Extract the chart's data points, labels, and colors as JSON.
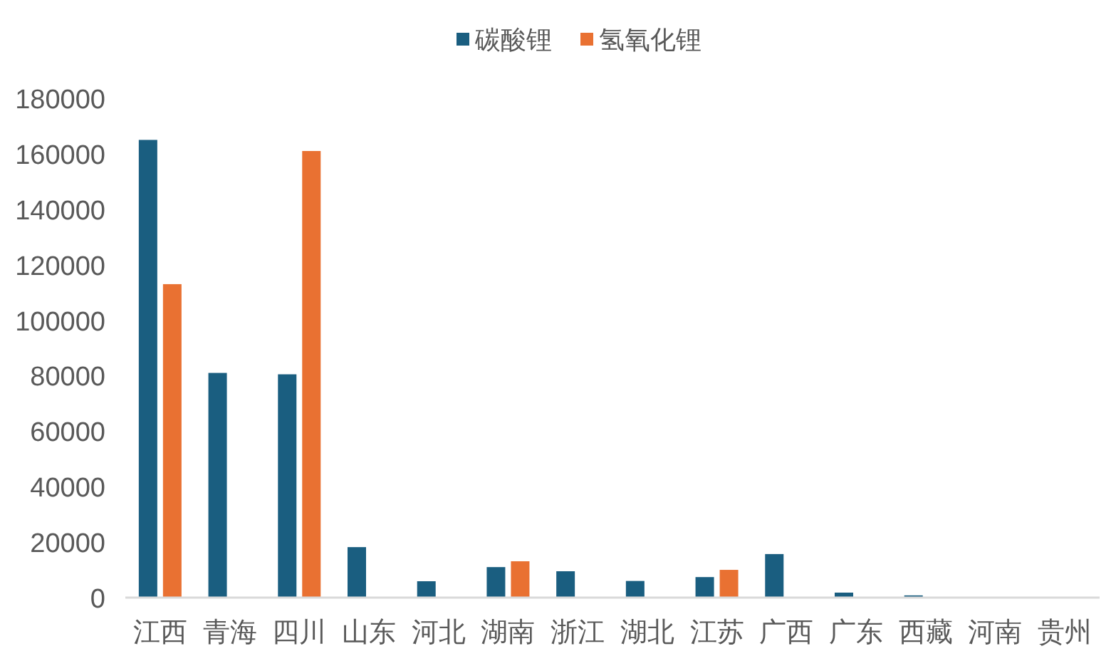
{
  "chart_data": {
    "type": "bar",
    "categories": [
      "江西",
      "青海",
      "四川",
      "山东",
      "河北",
      "湖南",
      "浙江",
      "湖北",
      "江苏",
      "广西",
      "广东",
      "西藏",
      "河南",
      "贵州"
    ],
    "series": [
      {
        "name": "碳酸锂",
        "color": "#1a5e80",
        "values": [
          165000,
          81000,
          80500,
          18200,
          5900,
          11000,
          9500,
          6000,
          7400,
          15700,
          1800,
          800,
          null,
          0
        ]
      },
      {
        "name": "氢氧化锂",
        "color": "#e97132",
        "values": [
          113000,
          0,
          161000,
          0,
          0,
          13100,
          0,
          0,
          10000,
          0,
          0,
          0,
          0,
          0
        ]
      }
    ],
    "ylim": [
      0,
      180000
    ],
    "yticks": [
      0,
      20000,
      40000,
      60000,
      80000,
      100000,
      120000,
      140000,
      160000,
      180000
    ],
    "grid": false,
    "legend": "top"
  }
}
